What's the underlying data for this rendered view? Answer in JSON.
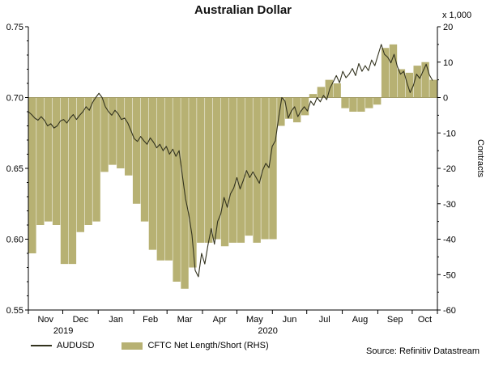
{
  "title": "Australian Dollar",
  "source": "Source: Refinitiv Datastream",
  "legend": {
    "items": [
      {
        "label": "AUDUSD"
      },
      {
        "label": "CFTC Net Length/Short (RHS)"
      }
    ]
  },
  "colors": {
    "line": "#32321e",
    "bar": "#b7b173",
    "zero_line": "#a39d66",
    "axis": "#000000",
    "text": "#000000"
  },
  "chart_data": {
    "type": "mixed",
    "title": "Australian Dollar",
    "x_axis": {
      "unit": "weeks since 2019-11-01",
      "range": [
        0,
        51
      ],
      "months": [
        {
          "label": "Nov",
          "start": 0
        },
        {
          "label": "Dec",
          "start": 4.29
        },
        {
          "label": "Jan",
          "start": 8.71
        },
        {
          "label": "Feb",
          "start": 13.14
        },
        {
          "label": "Mar",
          "start": 17.29
        },
        {
          "label": "Apr",
          "start": 21.71
        },
        {
          "label": "May",
          "start": 26.0
        },
        {
          "label": "Jun",
          "start": 30.43
        },
        {
          "label": "Jul",
          "start": 34.71
        },
        {
          "label": "Aug",
          "start": 39.14
        },
        {
          "label": "Sep",
          "start": 43.57
        },
        {
          "label": "Oct",
          "start": 47.86
        }
      ],
      "year_labels": [
        {
          "label": "2019",
          "x": 4.36
        },
        {
          "label": "2020",
          "x": 29.86
        }
      ]
    },
    "left_axis": {
      "min": 0.55,
      "max": 0.75,
      "ticks": [
        0.55,
        0.6,
        0.65,
        0.7,
        0.75
      ],
      "tick_labels": [
        "0.55",
        "0.60",
        "0.65",
        "0.70",
        "0.75"
      ],
      "minor_step": 0.01
    },
    "right_axis": {
      "unit": "x 1,000",
      "label": "Contracts",
      "min": -60,
      "max": 20,
      "ticks": [
        -60,
        -50,
        -40,
        -30,
        -20,
        -10,
        0,
        10,
        20
      ],
      "tick_labels": [
        "-60",
        "-50",
        "-40",
        "-30",
        "-20",
        "-10",
        "0",
        "10",
        "20"
      ],
      "minor_step": 5
    },
    "series": [
      {
        "name": "AUDUSD",
        "type": "line",
        "axis": "left",
        "x_start": 0,
        "x_step": 0.4,
        "values": [
          0.69,
          0.688,
          0.6855,
          0.684,
          0.6865,
          0.684,
          0.68,
          0.6815,
          0.6785,
          0.68,
          0.6835,
          0.6845,
          0.682,
          0.6855,
          0.688,
          0.6845,
          0.6875,
          0.69,
          0.6935,
          0.691,
          0.6965,
          0.7,
          0.703,
          0.7,
          0.6935,
          0.69,
          0.6875,
          0.691,
          0.6885,
          0.6845,
          0.6855,
          0.682,
          0.6765,
          0.671,
          0.669,
          0.6725,
          0.6695,
          0.667,
          0.6715,
          0.6685,
          0.6645,
          0.667,
          0.6625,
          0.6655,
          0.66,
          0.6635,
          0.6585,
          0.6625,
          0.645,
          0.6285,
          0.6175,
          0.603,
          0.578,
          0.5735,
          0.59,
          0.5825,
          0.596,
          0.6075,
          0.5965,
          0.6125,
          0.618,
          0.6295,
          0.6225,
          0.632,
          0.636,
          0.6435,
          0.6355,
          0.6415,
          0.6485,
          0.6435,
          0.6475,
          0.6435,
          0.6395,
          0.6485,
          0.6535,
          0.6505,
          0.6655,
          0.6695,
          0.6855,
          0.7,
          0.6975,
          0.6855,
          0.6905,
          0.6935,
          0.6865,
          0.6905,
          0.6935,
          0.6905,
          0.6975,
          0.6945,
          0.7,
          0.697,
          0.7015,
          0.6985,
          0.7065,
          0.711,
          0.7155,
          0.7105,
          0.7185,
          0.714,
          0.7165,
          0.7205,
          0.7155,
          0.724,
          0.7185,
          0.7225,
          0.719,
          0.7265,
          0.7225,
          0.73,
          0.7375,
          0.7305,
          0.7285,
          0.7245,
          0.7305,
          0.722,
          0.7165,
          0.7185,
          0.7105,
          0.7035,
          0.7085,
          0.7165,
          0.7135,
          0.7185,
          0.7235,
          0.716,
          0.712
        ]
      },
      {
        "name": "CFTC Net Length/Short (RHS)",
        "type": "bar",
        "axis": "right",
        "x_start": 0,
        "x_step": 1,
        "values": [
          -44,
          -36,
          -35,
          -36,
          -47,
          -47,
          -38,
          -36,
          -35,
          -21,
          -19,
          -20,
          -22,
          -30,
          -35,
          -43,
          -46,
          -46,
          -52,
          -54,
          -48,
          -41,
          -41,
          -40,
          -42,
          -41,
          -41,
          -39,
          -41,
          -40,
          -40,
          -8,
          -6,
          -7,
          -5,
          1,
          3,
          5,
          4,
          -3,
          -4,
          -4,
          -3,
          -2,
          14,
          15,
          8,
          7,
          9,
          10,
          5
        ]
      }
    ]
  }
}
